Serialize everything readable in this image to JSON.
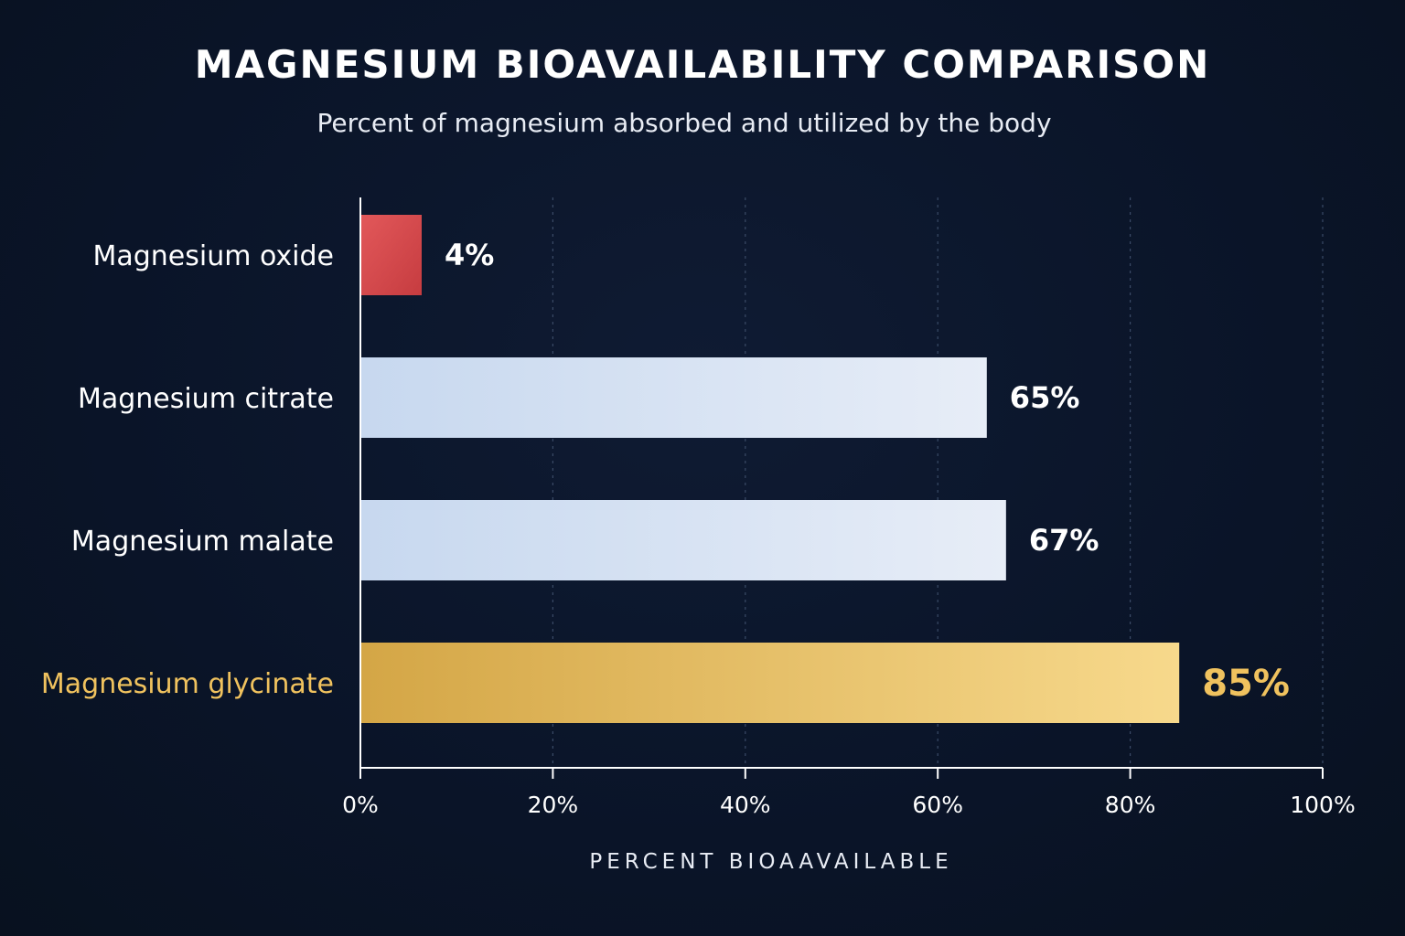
{
  "chart_data": {
    "type": "bar",
    "orientation": "horizontal",
    "title": "MAGNESIUM BIOAVAILABILITY COMPARISON",
    "subtitle": "Percent of magnesium absorbed and utilized by the body",
    "xlabel": "PERCENT BIOAAVAILABLE",
    "ylabel": "",
    "xlim": [
      0,
      100
    ],
    "grid": true,
    "categories": [
      "Magnesium oxide",
      "Magnesium citrate",
      "Magnesium malate",
      "Magnesium glycinate"
    ],
    "values": [
      4,
      65,
      67,
      85
    ],
    "value_labels": [
      "4%",
      "65%",
      "67%",
      "85%"
    ],
    "ticks": [
      0,
      20,
      40,
      60,
      80,
      100
    ],
    "tick_labels": [
      "0%",
      "20%",
      "40%",
      "60%",
      "80%",
      "100%"
    ],
    "highlight_index": 3,
    "colors": {
      "background": "#0a1428",
      "oxide": "#d9474a",
      "neutral": "#d3e0f2",
      "highlight": "#f0c25e",
      "grid": "#3a4a66",
      "axis": "#ffffff"
    }
  }
}
